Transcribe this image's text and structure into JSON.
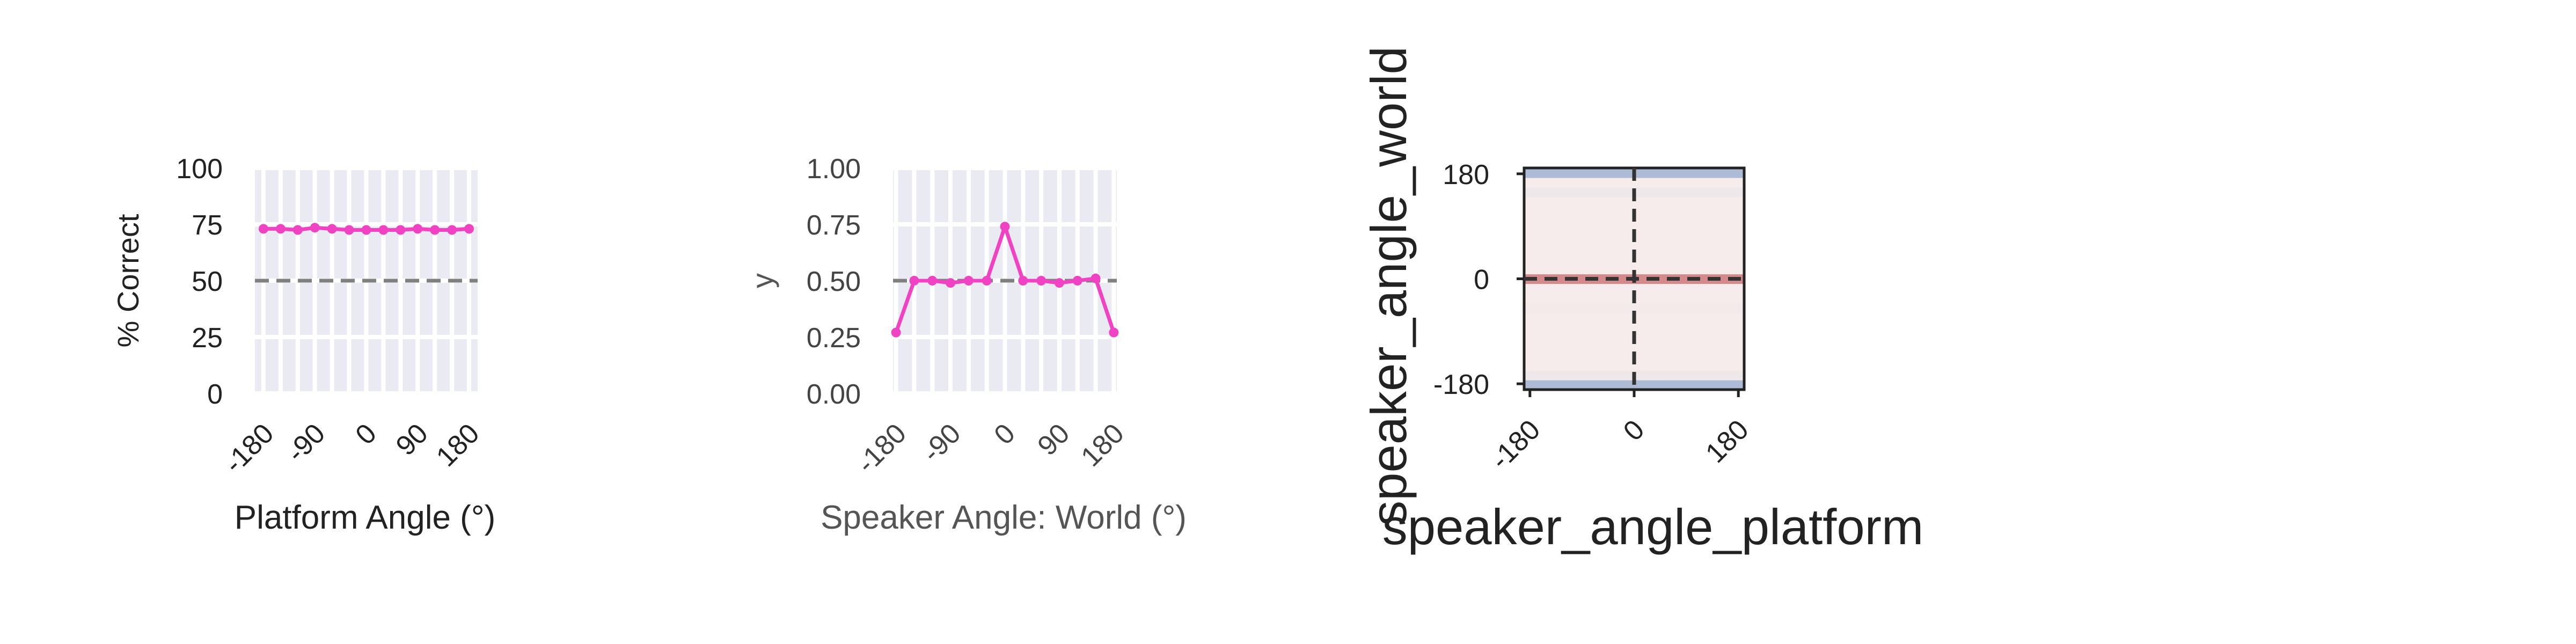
{
  "colors": {
    "series": "#f043c3",
    "reference": "#808080",
    "panel_bg": "#eaeaf2",
    "grid": "#ffffff",
    "heat_high": "#d48a8a",
    "heat_mid": "#f6ecec",
    "heat_low": "#a3b4d4",
    "crosshair": "#333333"
  },
  "chart_data": [
    {
      "type": "line",
      "xlabel": "Platform Angle (°)",
      "ylabel": "% Correct",
      "x": [
        -180,
        -150,
        -120,
        -90,
        -60,
        -30,
        0,
        30,
        60,
        90,
        120,
        150,
        180
      ],
      "series": [
        {
          "values": [
            73,
            73,
            72.5,
            73.5,
            73,
            72.5,
            72.5,
            72.5,
            72.5,
            73,
            72.5,
            72.5,
            73
          ]
        }
      ],
      "reference_line": 50,
      "xlim": [
        -195,
        195
      ],
      "ylim": [
        0,
        100
      ],
      "xticks": [
        "-180",
        "-90",
        "0",
        "90",
        "180"
      ],
      "yticks": [
        "0",
        "25",
        "50",
        "75",
        "100"
      ],
      "grid": true
    },
    {
      "type": "line",
      "xlabel": "Speaker Angle: World (°)",
      "ylabel": "y",
      "x": [
        -180,
        -150,
        -120,
        -90,
        -60,
        -30,
        0,
        30,
        60,
        90,
        120,
        150,
        180
      ],
      "series": [
        {
          "values": [
            0.27,
            0.5,
            0.5,
            0.49,
            0.5,
            0.5,
            0.74,
            0.5,
            0.5,
            0.49,
            0.5,
            0.51,
            0.27
          ]
        }
      ],
      "reference_line": 0.5,
      "xlim": [
        -185,
        185
      ],
      "ylim": [
        0,
        1
      ],
      "xticks": [
        "-180",
        "-90",
        "0",
        "90",
        "180"
      ],
      "yticks": [
        "0.00",
        "0.25",
        "0.50",
        "0.75",
        "1.00"
      ],
      "grid": true
    },
    {
      "type": "heatmap",
      "xlabel": "speaker_angle_platform",
      "ylabel": "speaker_angle_world",
      "xlim": [
        -190,
        190
      ],
      "ylim": [
        -190,
        190
      ],
      "xticks": [
        "-180",
        "0",
        "180"
      ],
      "yticks": [
        "-180",
        "0",
        "180"
      ],
      "row_values": [
        0.28,
        0.48,
        0.5,
        0.5,
        0.5,
        0.5,
        0.5,
        0.5,
        0.49,
        0.5,
        0.5,
        0.75,
        0.5,
        0.5,
        0.5,
        0.5,
        0.5,
        0.5,
        0.5,
        0.5,
        0.48,
        0.5,
        0.28
      ],
      "crosshair": {
        "x": 0,
        "y": 0
      }
    }
  ]
}
